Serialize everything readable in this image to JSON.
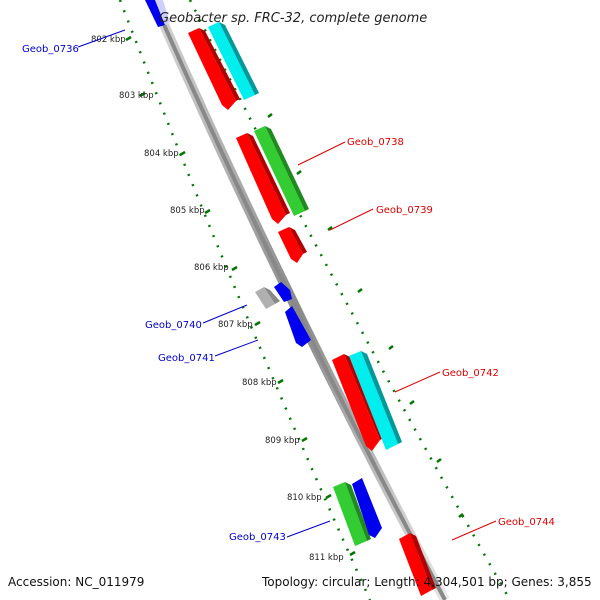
{
  "title": "Geobacter sp. FRC-32, complete genome",
  "footer": {
    "accession": "Accession: NC_011979",
    "summary": "Topology: circular; Length: 4,304,501 bp; Genes: 3,855"
  },
  "ticks": [
    "802 kbp",
    "803 kbp",
    "804 kbp",
    "805 kbp",
    "806 kbp",
    "807 kbp",
    "808 kbp",
    "809 kbp",
    "810 kbp",
    "811 kbp"
  ],
  "gene_labels": [
    {
      "id": "geob_0736",
      "text": "Geob_0736",
      "color": "#0000cc"
    },
    {
      "id": "geob_0738",
      "text": "Geob_0738",
      "color": "#dd0000"
    },
    {
      "id": "geob_0739",
      "text": "Geob_0739",
      "color": "#dd0000"
    },
    {
      "id": "geob_0740",
      "text": "Geob_0740",
      "color": "#0000cc"
    },
    {
      "id": "geob_0741",
      "text": "Geob_0741",
      "color": "#0000cc"
    },
    {
      "id": "geob_0742",
      "text": "Geob_0742",
      "color": "#dd0000"
    },
    {
      "id": "geob_0743",
      "text": "Geob_0743",
      "color": "#0000cc"
    },
    {
      "id": "geob_0744",
      "text": "Geob_0744",
      "color": "#dd0000"
    }
  ],
  "colors": {
    "red": "#ff0000",
    "green": "#33cc33",
    "cyan": "#00eeee",
    "blue": "#0000ee",
    "gray": "#b0b0b0",
    "backbone": "#888888",
    "ticks": "#007700"
  }
}
